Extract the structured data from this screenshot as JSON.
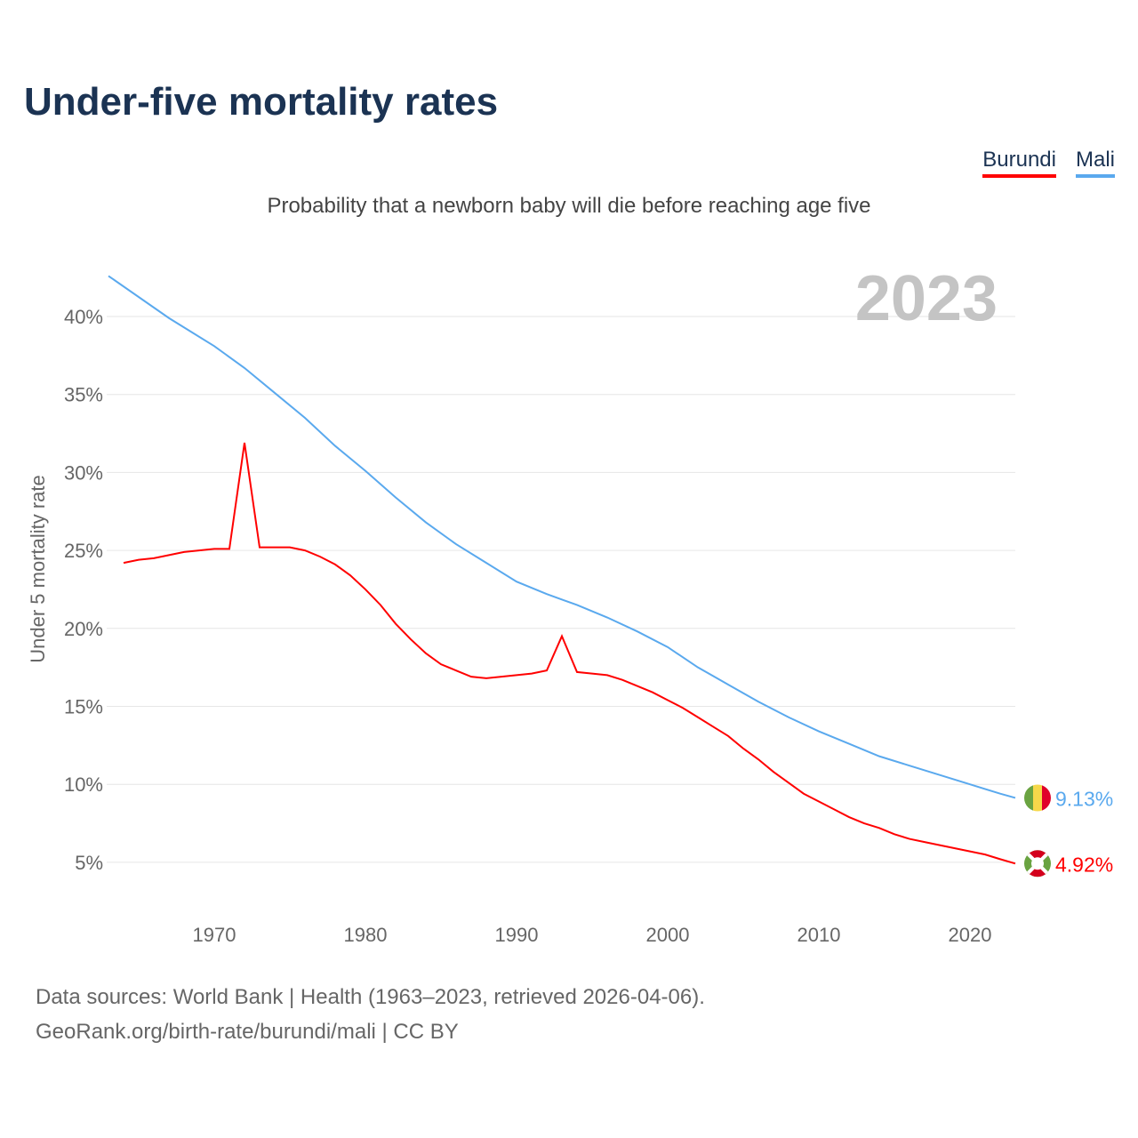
{
  "chart_data": {
    "type": "line",
    "title": "Under-five mortality rates",
    "subtitle": "Probability that a newborn baby will die before reaching age five",
    "ylabel": "Under 5 mortality rate",
    "xlabel": "",
    "ylim": [
      2,
      44
    ],
    "xlim": [
      1963,
      2023
    ],
    "year_label": "2023",
    "yticks": [
      5,
      10,
      15,
      20,
      25,
      30,
      35,
      40
    ],
    "ytick_labels": [
      "5%",
      "10%",
      "15%",
      "20%",
      "25%",
      "30%",
      "35%",
      "40%"
    ],
    "xticks": [
      1970,
      1980,
      1990,
      2000,
      2010,
      2020
    ],
    "xtick_labels": [
      "1970",
      "1980",
      "1990",
      "2000",
      "2010",
      "2020"
    ],
    "grid": true,
    "legend_position": "top-right",
    "series": [
      {
        "name": "Burundi",
        "color": "#ff0000",
        "end_label": "4.92%",
        "x": [
          1964,
          1965,
          1966,
          1967,
          1968,
          1969,
          1970,
          1971,
          1972,
          1973,
          1974,
          1975,
          1976,
          1977,
          1978,
          1979,
          1980,
          1981,
          1982,
          1983,
          1984,
          1985,
          1986,
          1987,
          1988,
          1989,
          1990,
          1991,
          1992,
          1993,
          1994,
          1995,
          1996,
          1997,
          1998,
          1999,
          2000,
          2001,
          2002,
          2003,
          2004,
          2005,
          2006,
          2007,
          2008,
          2009,
          2010,
          2011,
          2012,
          2013,
          2014,
          2015,
          2016,
          2017,
          2018,
          2019,
          2020,
          2021,
          2022,
          2023
        ],
        "values": [
          24.2,
          24.4,
          24.5,
          24.7,
          24.9,
          25.0,
          25.1,
          25.1,
          31.9,
          25.2,
          25.2,
          25.2,
          25.0,
          24.6,
          24.1,
          23.4,
          22.5,
          21.5,
          20.3,
          19.3,
          18.4,
          17.7,
          17.3,
          16.9,
          16.8,
          16.9,
          17.0,
          17.1,
          17.3,
          19.5,
          17.2,
          17.1,
          17.0,
          16.7,
          16.3,
          15.9,
          15.4,
          14.9,
          14.3,
          13.7,
          13.1,
          12.3,
          11.6,
          10.8,
          10.1,
          9.4,
          8.9,
          8.4,
          7.9,
          7.5,
          7.2,
          6.8,
          6.5,
          6.3,
          6.1,
          5.9,
          5.7,
          5.5,
          5.2,
          4.92
        ]
      },
      {
        "name": "Mali",
        "color": "#5aa9ee",
        "end_label": "9.13%",
        "x": [
          1963,
          1967,
          1970,
          1972,
          1974,
          1976,
          1978,
          1980,
          1982,
          1984,
          1986,
          1988,
          1990,
          1992,
          1994,
          1996,
          1998,
          2000,
          2002,
          2004,
          2006,
          2008,
          2010,
          2012,
          2014,
          2016,
          2018,
          2020,
          2022,
          2023
        ],
        "values": [
          42.6,
          39.9,
          38.1,
          36.7,
          35.1,
          33.5,
          31.7,
          30.1,
          28.4,
          26.8,
          25.4,
          24.2,
          23.0,
          22.2,
          21.5,
          20.7,
          19.8,
          18.8,
          17.5,
          16.4,
          15.3,
          14.3,
          13.4,
          12.6,
          11.8,
          11.2,
          10.6,
          10.0,
          9.4,
          9.13
        ]
      }
    ]
  },
  "footer": {
    "line1": "Data sources: World Bank | Health (1963–2023, retrieved 2026-04-06).",
    "line2": "GeoRank.org/birth-rate/burundi/mali | CC BY"
  }
}
